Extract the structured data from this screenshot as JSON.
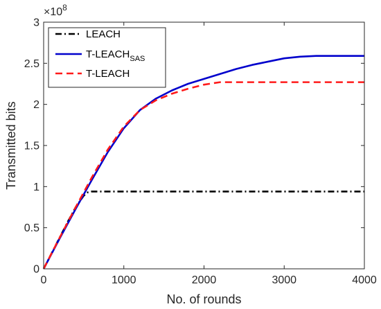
{
  "chart_data": {
    "type": "line",
    "xlabel": "No. of rounds",
    "ylabel": "Transmitted bits",
    "xlim": [
      0,
      4000
    ],
    "ylim": [
      0,
      3
    ],
    "y_multiplier": "×10",
    "y_multiplier_exp": "8",
    "xticks": [
      0,
      1000,
      2000,
      3000,
      4000
    ],
    "xtick_labels": [
      "0",
      "1000",
      "2000",
      "3000",
      "4000"
    ],
    "yticks": [
      0,
      0.5,
      1,
      1.5,
      2,
      2.5,
      3
    ],
    "ytick_labels": [
      "0",
      "0.5",
      "1",
      "1.5",
      "2",
      "2.5",
      "3"
    ],
    "grid": false,
    "legend_position": "top-left",
    "series": [
      {
        "name": "LEACH",
        "name_sub": "",
        "color": "#000000",
        "style": "dash-dot",
        "x": [
          0,
          100,
          200,
          300,
          400,
          500,
          550,
          600,
          800,
          1000,
          1500,
          2000,
          2500,
          3000,
          3500,
          4000
        ],
        "y": [
          0,
          0.19,
          0.38,
          0.57,
          0.75,
          0.89,
          0.93,
          0.94,
          0.94,
          0.94,
          0.94,
          0.94,
          0.94,
          0.94,
          0.94,
          0.94
        ]
      },
      {
        "name": "T-LEACH",
        "name_sub": "SAS",
        "color": "#0000cc",
        "style": "solid",
        "x": [
          0,
          200,
          400,
          600,
          800,
          1000,
          1200,
          1400,
          1600,
          1800,
          2000,
          2200,
          2400,
          2600,
          2800,
          3000,
          3200,
          3400,
          3600,
          3800,
          4000
        ],
        "y": [
          0,
          0.37,
          0.73,
          1.08,
          1.42,
          1.71,
          1.93,
          2.07,
          2.17,
          2.25,
          2.31,
          2.37,
          2.43,
          2.48,
          2.52,
          2.56,
          2.58,
          2.59,
          2.59,
          2.59,
          2.59
        ]
      },
      {
        "name": "T-LEACH",
        "name_sub": "",
        "color": "#ff1a1a",
        "style": "dashed",
        "x": [
          0,
          200,
          400,
          600,
          800,
          1000,
          1200,
          1400,
          1600,
          1800,
          2000,
          2200,
          2400,
          2600,
          3000,
          3500,
          4000
        ],
        "y": [
          0,
          0.38,
          0.75,
          1.11,
          1.45,
          1.73,
          1.93,
          2.05,
          2.13,
          2.19,
          2.24,
          2.27,
          2.27,
          2.27,
          2.27,
          2.27,
          2.27
        ]
      }
    ]
  }
}
